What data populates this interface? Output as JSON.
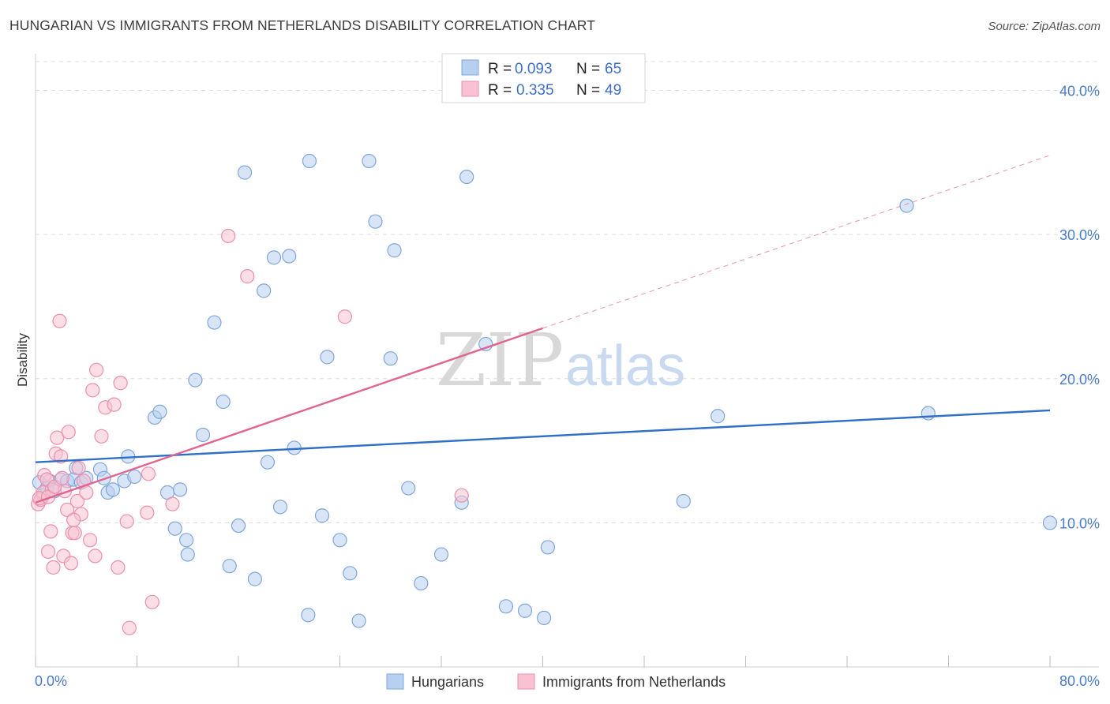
{
  "title": "HUNGARIAN VS IMMIGRANTS FROM NETHERLANDS DISABILITY CORRELATION CHART",
  "source": "Source: ZipAtlas.com",
  "watermark": {
    "zip": "ZIP",
    "atlas": "atlas"
  },
  "colors": {
    "blue_fill": "#b8d0f0",
    "blue_stroke": "#7fa6dc",
    "blue_line": "#2f6fc9",
    "pink_fill": "#f8c2d2",
    "pink_stroke": "#ec8fac",
    "pink_line": "#e0668f",
    "grid": "#dcdcdc",
    "tick_text": "#4a7cc9"
  },
  "legend": {
    "rows": [
      {
        "r_label": "R = ",
        "r_value": "0.093",
        "n_label": "N = ",
        "n_value": "65"
      },
      {
        "r_label": "R = ",
        "r_value": "0.335",
        "n_label": "N = ",
        "n_value": "49"
      }
    ]
  },
  "chart_data": {
    "type": "scatter",
    "title": "HUNGARIAN VS IMMIGRANTS FROM NETHERLANDS DISABILITY CORRELATION CHART",
    "xlabel": "",
    "ylabel": "Disability",
    "xlim": [
      0,
      80
    ],
    "ylim": [
      0,
      42
    ],
    "x_tick_labels": [
      "0.0%",
      "80.0%"
    ],
    "y_ticks": [
      10,
      20,
      30,
      40
    ],
    "y_tick_labels": [
      "10.0%",
      "20.0%",
      "30.0%",
      "40.0%"
    ],
    "grid": true,
    "legend_position": "top-center",
    "series": [
      {
        "name": "Hungarians",
        "color": "#b8d0f0",
        "trend": {
          "x": [
            0,
            80
          ],
          "y": [
            14.2,
            17.8
          ]
        },
        "points": [
          [
            0.3,
            12.8
          ],
          [
            0.6,
            11.9
          ],
          [
            0.9,
            12.4
          ],
          [
            1.1,
            12.9
          ],
          [
            1.5,
            12.2
          ],
          [
            2.0,
            13.0
          ],
          [
            2.5,
            12.9
          ],
          [
            3.2,
            13.8
          ],
          [
            3.0,
            13.0
          ],
          [
            3.6,
            12.8
          ],
          [
            4.0,
            13.1
          ],
          [
            5.1,
            13.7
          ],
          [
            5.4,
            13.1
          ],
          [
            5.7,
            12.1
          ],
          [
            6.1,
            12.3
          ],
          [
            7.0,
            12.9
          ],
          [
            7.3,
            14.6
          ],
          [
            7.8,
            13.2
          ],
          [
            9.4,
            17.3
          ],
          [
            9.8,
            17.7
          ],
          [
            10.4,
            12.1
          ],
          [
            11.0,
            9.6
          ],
          [
            11.4,
            12.3
          ],
          [
            11.9,
            8.8
          ],
          [
            12.0,
            7.8
          ],
          [
            12.6,
            19.9
          ],
          [
            13.2,
            16.1
          ],
          [
            14.1,
            23.9
          ],
          [
            14.8,
            18.4
          ],
          [
            15.3,
            7.0
          ],
          [
            16.0,
            9.8
          ],
          [
            16.5,
            34.3
          ],
          [
            17.3,
            6.1
          ],
          [
            18.0,
            26.1
          ],
          [
            18.3,
            14.2
          ],
          [
            18.8,
            28.4
          ],
          [
            19.3,
            11.1
          ],
          [
            20.0,
            28.5
          ],
          [
            20.4,
            15.2
          ],
          [
            21.5,
            3.6
          ],
          [
            21.6,
            35.1
          ],
          [
            22.6,
            10.5
          ],
          [
            23.0,
            21.5
          ],
          [
            24.0,
            8.8
          ],
          [
            24.8,
            6.5
          ],
          [
            25.5,
            3.2
          ],
          [
            26.3,
            35.1
          ],
          [
            26.8,
            30.9
          ],
          [
            28.0,
            21.4
          ],
          [
            28.3,
            28.9
          ],
          [
            29.4,
            12.4
          ],
          [
            30.4,
            5.8
          ],
          [
            32.0,
            7.8
          ],
          [
            33.6,
            11.4
          ],
          [
            34.0,
            34.0
          ],
          [
            35.5,
            22.4
          ],
          [
            37.1,
            4.2
          ],
          [
            38.6,
            3.9
          ],
          [
            40.1,
            3.4
          ],
          [
            40.4,
            8.3
          ],
          [
            51.1,
            11.5
          ],
          [
            53.8,
            17.4
          ],
          [
            68.7,
            32.0
          ],
          [
            70.4,
            17.6
          ],
          [
            80.0,
            10.0
          ]
        ]
      },
      {
        "name": "Immigrants from Netherlands",
        "color": "#f8c2d2",
        "trend": {
          "x": [
            0,
            40
          ],
          "y": [
            11.4,
            23.5
          ]
        },
        "trend_dashed": {
          "x": [
            40,
            80
          ],
          "y": [
            23.5,
            35.5
          ]
        },
        "points": [
          [
            0.2,
            11.3
          ],
          [
            0.4,
            11.6
          ],
          [
            0.6,
            12.1
          ],
          [
            0.7,
            13.3
          ],
          [
            0.9,
            13.0
          ],
          [
            1.0,
            8.0
          ],
          [
            1.2,
            9.4
          ],
          [
            1.3,
            12.3
          ],
          [
            1.4,
            6.9
          ],
          [
            1.6,
            14.8
          ],
          [
            1.7,
            15.9
          ],
          [
            1.9,
            24.0
          ],
          [
            2.0,
            14.6
          ],
          [
            2.2,
            7.7
          ],
          [
            2.3,
            12.2
          ],
          [
            2.5,
            10.9
          ],
          [
            2.6,
            16.3
          ],
          [
            2.8,
            7.2
          ],
          [
            2.9,
            9.3
          ],
          [
            3.1,
            9.3
          ],
          [
            3.3,
            11.5
          ],
          [
            3.4,
            13.8
          ],
          [
            3.6,
            10.6
          ],
          [
            3.8,
            12.9
          ],
          [
            4.0,
            12.1
          ],
          [
            4.3,
            8.8
          ],
          [
            4.5,
            19.2
          ],
          [
            4.7,
            7.7
          ],
          [
            4.8,
            20.6
          ],
          [
            5.2,
            16.0
          ],
          [
            5.5,
            18.0
          ],
          [
            6.2,
            18.2
          ],
          [
            6.5,
            6.9
          ],
          [
            6.7,
            19.7
          ],
          [
            7.4,
            2.7
          ],
          [
            7.2,
            10.1
          ],
          [
            8.8,
            10.7
          ],
          [
            8.9,
            13.4
          ],
          [
            9.2,
            4.5
          ],
          [
            10.8,
            11.3
          ],
          [
            15.2,
            29.9
          ],
          [
            16.7,
            27.1
          ],
          [
            24.4,
            24.3
          ],
          [
            33.6,
            11.9
          ],
          [
            0.3,
            11.7
          ],
          [
            1.0,
            11.8
          ],
          [
            1.5,
            12.5
          ],
          [
            2.1,
            13.1
          ],
          [
            3.0,
            10.2
          ]
        ]
      }
    ]
  },
  "bottom_legend": {
    "items": [
      {
        "label": "Hungarians"
      },
      {
        "label": "Immigrants from Netherlands"
      }
    ]
  }
}
